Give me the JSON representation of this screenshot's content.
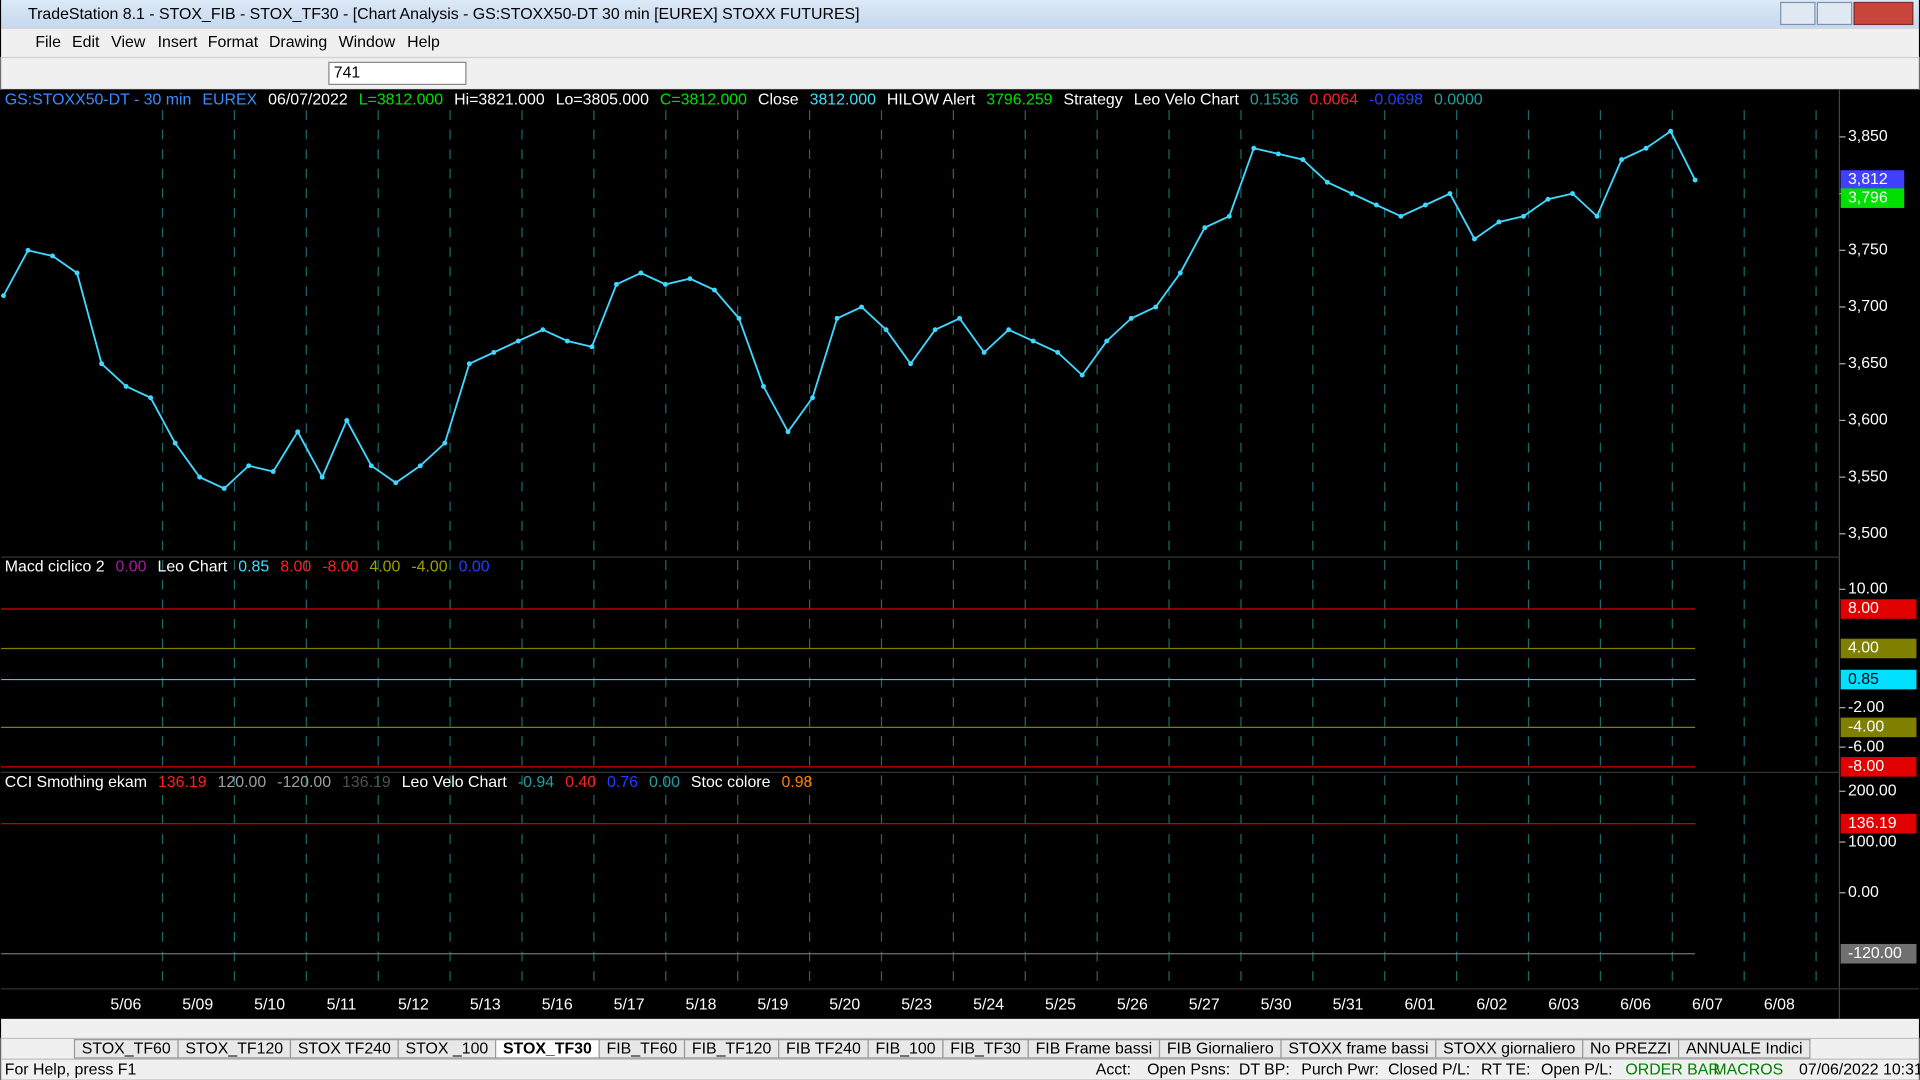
{
  "window": {
    "title": "TradeStation 8.1 - STOX_FIB - STOX_TF30 - [Chart Analysis - GS:STOXX50-DT  30 min  [EUREX] STOXX FUTURES]",
    "menu": [
      "File",
      "Edit",
      "View",
      "Insert",
      "Format",
      "Drawing",
      "Window",
      "Help"
    ],
    "symbol_box": "741"
  },
  "price_panel": {
    "header": [
      {
        "text": "GS:STOXX50-DT - 30 min",
        "color": "#3a8cff"
      },
      {
        "text": "EUREX",
        "color": "#3a8cff"
      },
      {
        "text": "06/07/2022",
        "color": "#ffffff"
      },
      {
        "text": "L=3812.000",
        "color": "#00e000"
      },
      {
        "text": "Hi=3821.000",
        "color": "#ffffff"
      },
      {
        "text": "Lo=3805.000",
        "color": "#ffffff"
      },
      {
        "text": "C=3812.000",
        "color": "#00e000"
      },
      {
        "text": "Close",
        "color": "#ffffff"
      },
      {
        "text": "3812.000",
        "color": "#40e0ff"
      },
      {
        "text": "HILOW Alert",
        "color": "#ffffff"
      },
      {
        "text": "3796.259",
        "color": "#00e000"
      },
      {
        "text": "Strategy",
        "color": "#ffffff"
      },
      {
        "text": "Leo Velo Chart",
        "color": "#ffffff"
      },
      {
        "text": "0.1536",
        "color": "#20a0a0"
      },
      {
        "text": "0.0064",
        "color": "#ff2020"
      },
      {
        "text": "-0.0698",
        "color": "#2040ff"
      },
      {
        "text": "0.0000",
        "color": "#20a0a0"
      }
    ],
    "ylim": [
      3480,
      3892
    ],
    "yticks": [
      {
        "value": 3850,
        "label": "3,850"
      },
      {
        "value": 3800,
        "label": "3,800"
      },
      {
        "value": 3750,
        "label": "3,750"
      },
      {
        "value": 3700,
        "label": "3,700"
      },
      {
        "value": 3650,
        "label": "3,650"
      },
      {
        "value": 3600,
        "label": "3,600"
      },
      {
        "value": 3550,
        "label": "3,550"
      },
      {
        "value": 3500,
        "label": "3,500"
      }
    ],
    "last_labels": [
      {
        "value": 3812,
        "label": "3,812",
        "color": "#4040ff"
      },
      {
        "value": 3796,
        "label": "3,796",
        "color": "#00e000"
      }
    ],
    "price_color": "#40d8ff",
    "price": [
      3710,
      3750,
      3745,
      3730,
      3650,
      3630,
      3620,
      3580,
      3550,
      3540,
      3560,
      3555,
      3590,
      3550,
      3600,
      3560,
      3545,
      3560,
      3580,
      3650,
      3660,
      3670,
      3680,
      3670,
      3665,
      3720,
      3730,
      3720,
      3725,
      3715,
      3690,
      3630,
      3590,
      3620,
      3690,
      3700,
      3680,
      3650,
      3680,
      3690,
      3660,
      3680,
      3670,
      3660,
      3640,
      3670,
      3690,
      3700,
      3730,
      3770,
      3780,
      3840,
      3835,
      3830,
      3810,
      3800,
      3790,
      3780,
      3790,
      3800,
      3760,
      3775,
      3780,
      3795,
      3800,
      3780,
      3830,
      3840,
      3855,
      3812
    ]
  },
  "macd_panel": {
    "header": [
      {
        "text": "Macd ciclico 2",
        "color": "#ffffff"
      },
      {
        "text": "0.00",
        "color": "#a020a0"
      },
      {
        "text": "Leo Chart",
        "color": "#ffffff"
      },
      {
        "text": "0.85",
        "color": "#40e0ff"
      },
      {
        "text": "8.00",
        "color": "#ff2020"
      },
      {
        "text": "-8.00",
        "color": "#ff2020"
      },
      {
        "text": "4.00",
        "color": "#a0a000"
      },
      {
        "text": "-4.00",
        "color": "#a0a000"
      },
      {
        "text": "0.00",
        "color": "#2040ff"
      }
    ],
    "ylim": [
      -8.5,
      13.2
    ],
    "yticks": [
      {
        "value": 10,
        "label": "10.00"
      },
      {
        "value": 8,
        "label": "8.00",
        "color": "#e00000"
      },
      {
        "value": 4,
        "label": "4.00",
        "color": "#808000"
      },
      {
        "value": 0.85,
        "label": "0.85",
        "color": "#00e0ff"
      },
      {
        "value": -2,
        "label": "-2.00"
      },
      {
        "value": -4,
        "label": "-4.00",
        "color": "#808000"
      },
      {
        "value": -6,
        "label": "-6.00"
      },
      {
        "value": -8,
        "label": "-8.00",
        "color": "#e00000"
      }
    ]
  },
  "cci_panel": {
    "header": [
      {
        "text": "CCI Smothing ekam",
        "color": "#ffffff"
      },
      {
        "text": "136.19",
        "color": "#ff2020"
      },
      {
        "text": "120.00",
        "color": "#a0a0a0"
      },
      {
        "text": "-120.00",
        "color": "#a0a0a0"
      },
      {
        "text": "136.19",
        "color": "#505050"
      },
      {
        "text": "Leo Velo Chart",
        "color": "#ffffff"
      },
      {
        "text": "-0.94",
        "color": "#20a0a0"
      },
      {
        "text": "0.40",
        "color": "#ff2020"
      },
      {
        "text": "0.76",
        "color": "#2040ff"
      },
      {
        "text": "0.00",
        "color": "#20a0a0"
      },
      {
        "text": "Stoc colore",
        "color": "#ffffff"
      },
      {
        "text": "0.98",
        "color": "#ff8000"
      }
    ],
    "ylim": [
      -188,
      236
    ],
    "yticks": [
      {
        "value": 200,
        "label": "200.00"
      },
      {
        "value": 136.19,
        "label": "136.19",
        "color": "#e00000"
      },
      {
        "value": 100,
        "label": "100.00"
      },
      {
        "value": 0,
        "label": "0.00"
      },
      {
        "value": -120,
        "label": "-120.00",
        "color": "#707070"
      }
    ]
  },
  "dates": [
    "5/06",
    "5/09",
    "5/10",
    "5/11",
    "5/12",
    "5/13",
    "5/16",
    "5/17",
    "5/18",
    "5/19",
    "5/20",
    "5/23",
    "5/24",
    "5/25",
    "5/26",
    "5/27",
    "5/30",
    "5/31",
    "6/01",
    "6/02",
    "6/03",
    "6/06",
    "6/07",
    "6/08"
  ],
  "tabs": [
    "STOX_TF60",
    "STOX_TF120",
    "STOX TF240",
    "STOX _100",
    "STOX_TF30",
    "FIB_TF60",
    "FIB_TF120",
    "FIB TF240",
    "FIB_100",
    "FIB_TF30",
    "FIB Frame bassi",
    "FIB Giornaliero",
    "STOXX frame bassi",
    "STOXX giornaliero",
    "No PREZZI",
    "ANNUALE Indici"
  ],
  "active_tab": "STOX_TF30",
  "status": {
    "help": "For Help, press F1",
    "fields": [
      "Acct:",
      "Open Psns:",
      "DT BP:",
      "Purch Pwr:",
      "Closed P/L:",
      "RT TE:",
      "Open P/L:",
      "ORDER BAR",
      "MACROS",
      "07/06/2022 10:31"
    ]
  }
}
